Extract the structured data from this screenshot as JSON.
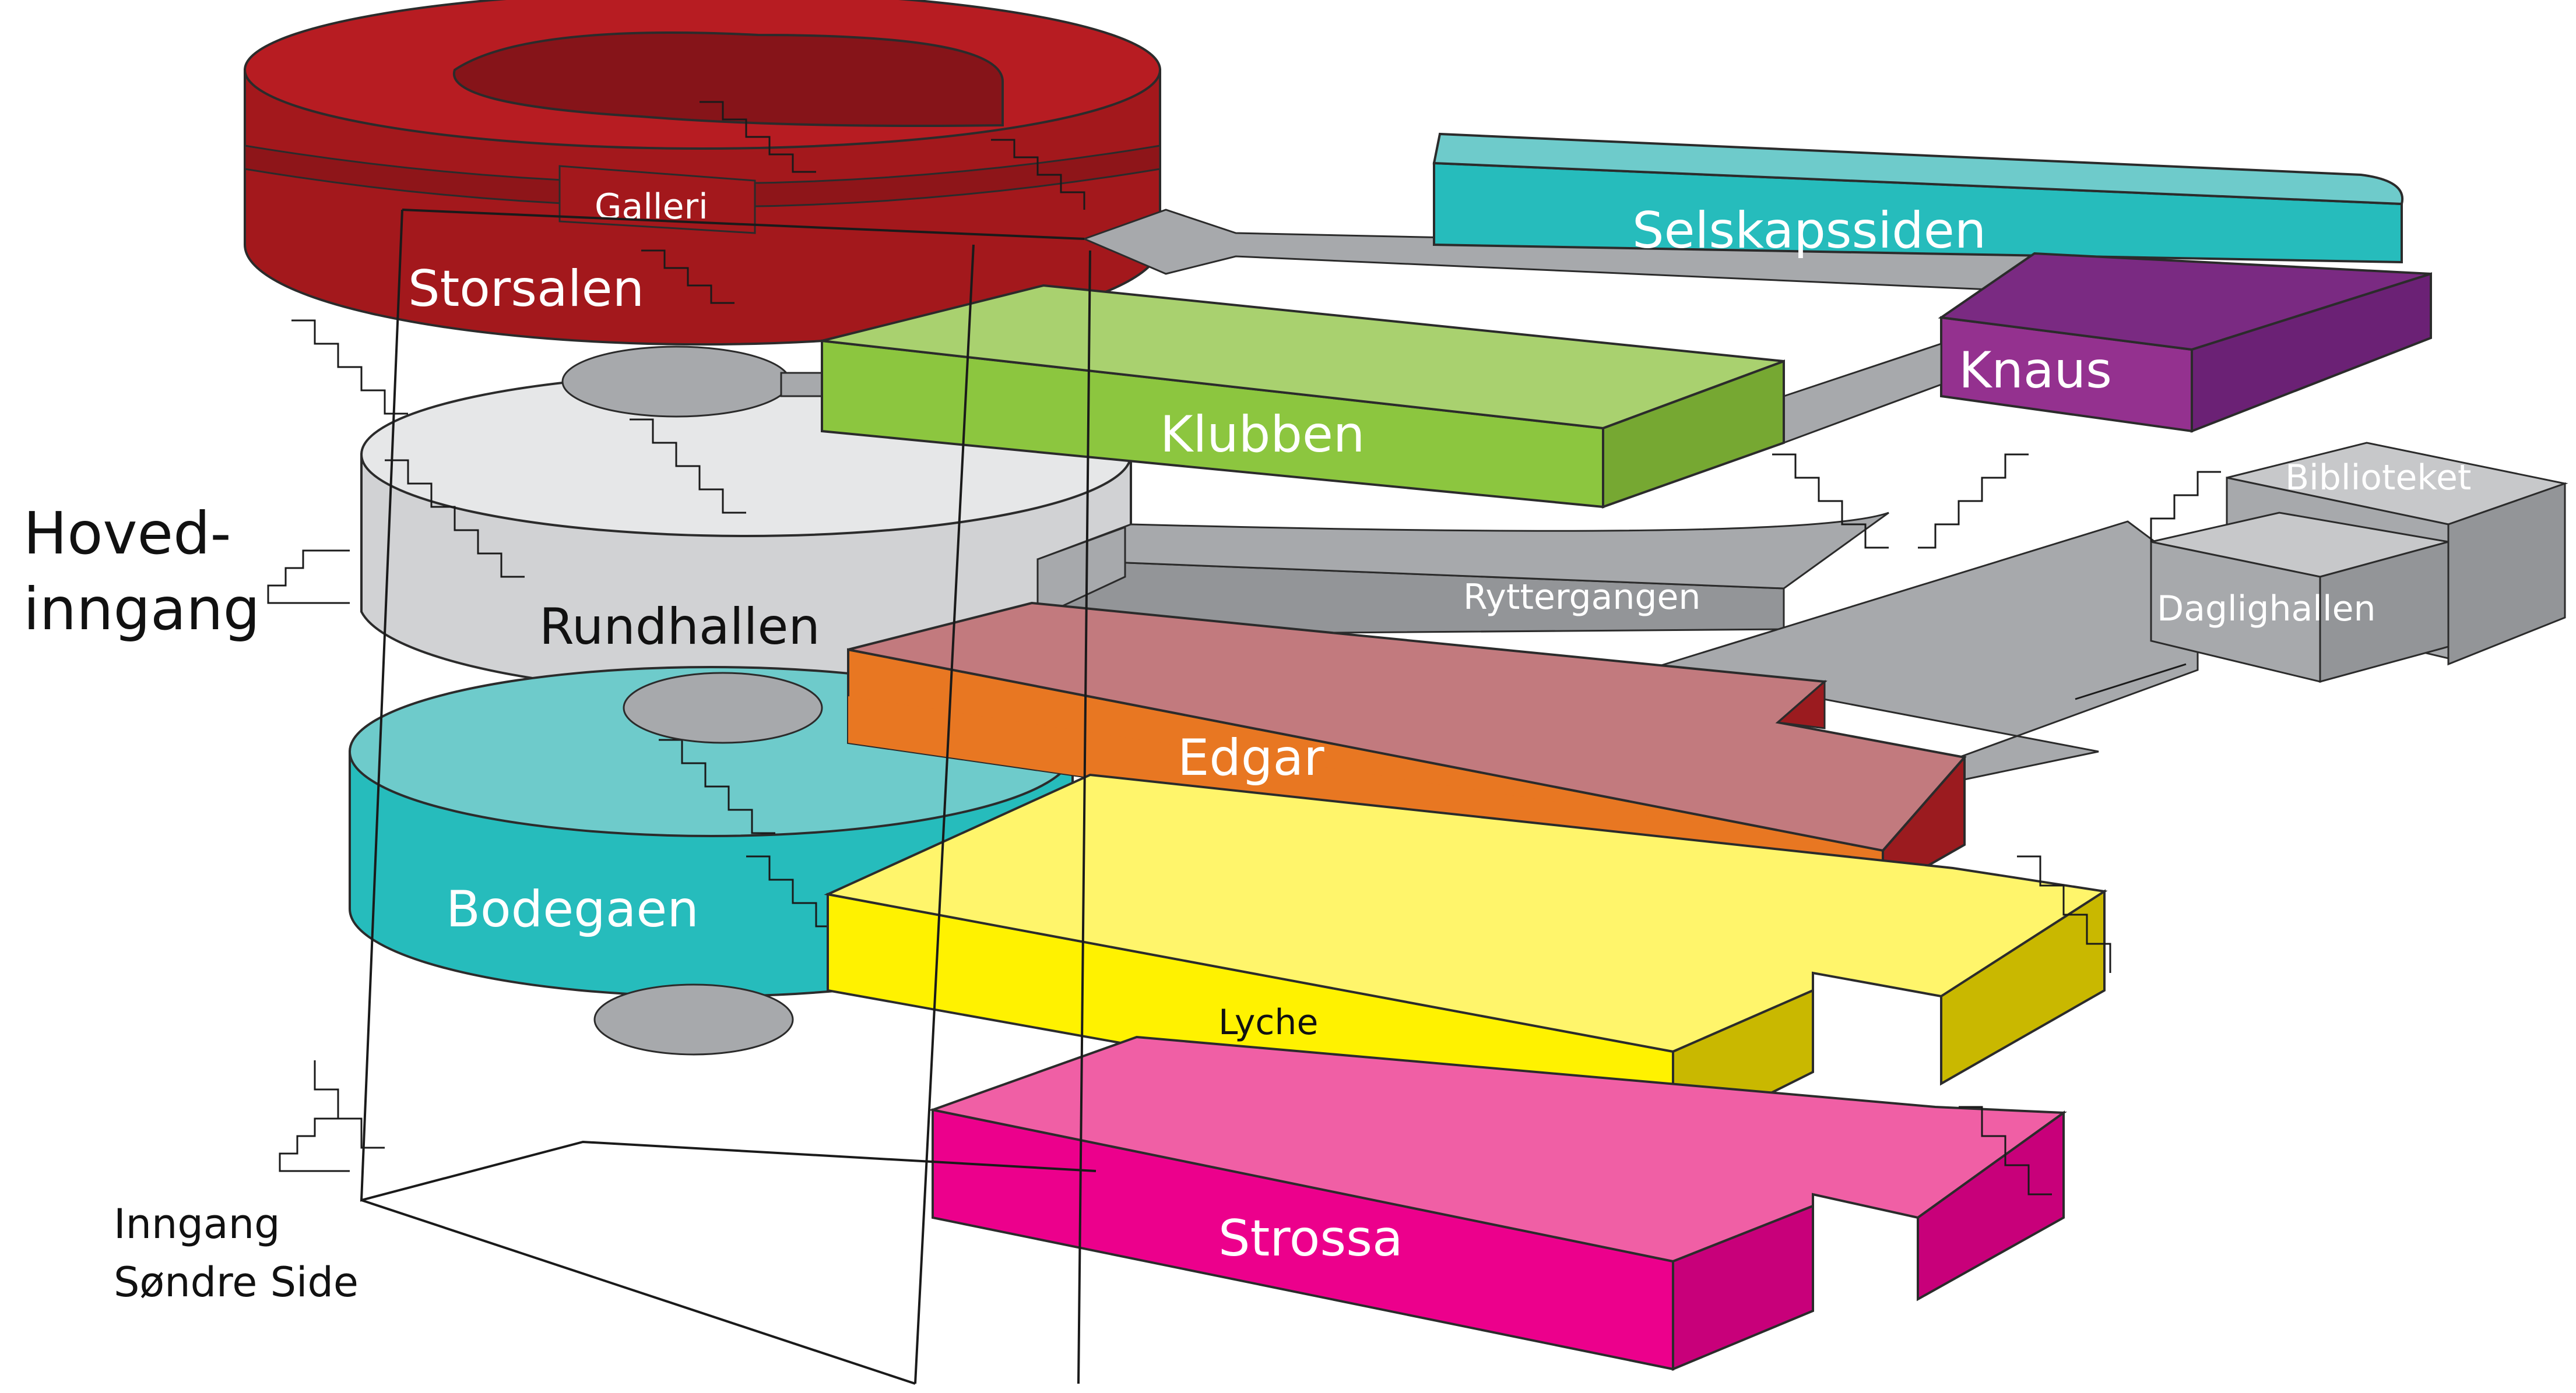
{
  "colors": {
    "storsalen": "#a3181c",
    "storsalen_dark": "#861419",
    "selskapssiden": "#26bcbc",
    "selskapssiden_light": "#6ecbcb",
    "knaus": "#7a2a82",
    "knaus_light": "#94318f",
    "klubben": "#8cc63f",
    "klubben_light": "#a9d16f",
    "klubben_dark": "#76a832",
    "rundhallen": "#d1d2d4",
    "rundhallen_light": "#e6e7e8",
    "corridor_gray": "#a7a9ac",
    "corridor_dark": "#939598",
    "edgar": "#e87722",
    "edgar_top": "#c27a7e",
    "edgar_dark": "#9b1b1f",
    "bodegaen": "#26bcbc",
    "bodegaen_light": "#6ecbcb",
    "lyche": "#fff200",
    "lyche_light": "#fff56b",
    "lyche_dark": "#c9b800",
    "strossa": "#ec008c",
    "strossa_light": "#f05fa5",
    "strossa_dark": "#c8007a"
  },
  "rooms": {
    "storsalen": "Storsalen",
    "galleri": "Galleri",
    "selskapssiden": "Selskapssiden",
    "knaus": "Knaus",
    "klubben": "Klubben",
    "rundhallen": "Rundhallen",
    "ryttergangen": "Ryttergangen",
    "biblioteket": "Biblioteket",
    "daglighallen": "Daglighallen",
    "edgar": "Edgar",
    "bodegaen": "Bodegaen",
    "lyche": "Lyche",
    "strossa": "Strossa"
  },
  "entrances": {
    "main_line1": "Hoved-",
    "main_line2": "inngang",
    "south_line1": "Inngang",
    "south_line2": "Søndre Side"
  }
}
